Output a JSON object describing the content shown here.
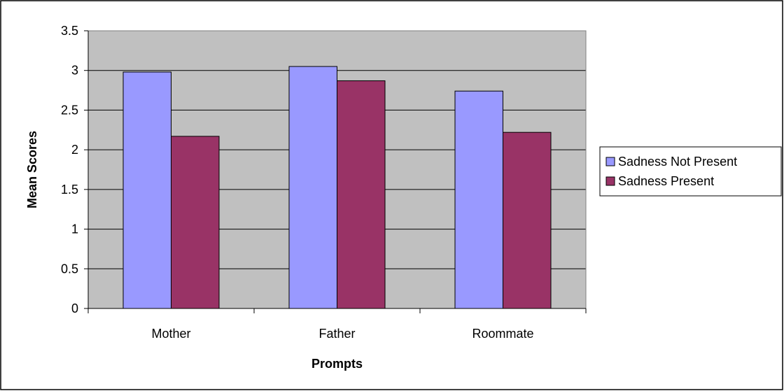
{
  "chart_data": {
    "type": "bar",
    "title": "",
    "xlabel": "Prompts",
    "ylabel": "Mean Scores",
    "categories": [
      "Mother",
      "Father",
      "Roommate"
    ],
    "series": [
      {
        "name": "Sadness Not Present",
        "values": [
          2.98,
          3.05,
          2.74
        ],
        "color": "#9999ff"
      },
      {
        "name": "Sadness Present",
        "values": [
          2.17,
          2.87,
          2.22
        ],
        "color": "#993366"
      }
    ],
    "ylim": [
      0,
      3.5
    ],
    "yticks": [
      "0",
      "0.5",
      "1",
      "1.5",
      "2",
      "2.5",
      "3",
      "3.5"
    ],
    "grid": true,
    "plot_background": "#c0c0c0",
    "legend_position": "right"
  }
}
